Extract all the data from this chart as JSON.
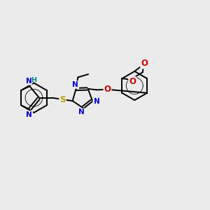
{
  "bg_color": "#ebebeb",
  "bond_color": "#000000",
  "bond_width": 1.4,
  "n_color": "#0000cc",
  "o_color": "#cc0000",
  "s_color": "#b8a000",
  "h_color": "#008080",
  "figsize": [
    3.0,
    3.0
  ],
  "dpi": 100,
  "xlim": [
    0,
    10
  ],
  "ylim": [
    0,
    10
  ]
}
